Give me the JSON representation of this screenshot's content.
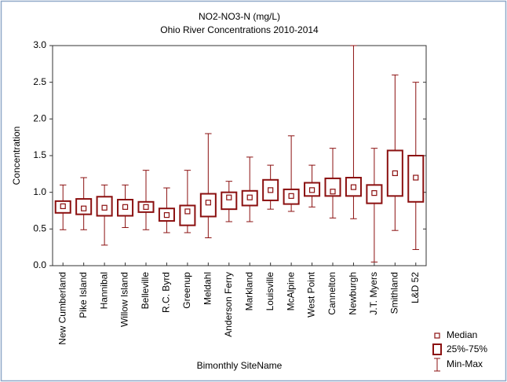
{
  "chart_data": {
    "type": "box",
    "title": "NO2-NO3-N (mg/L)",
    "subtitle": "Ohio River Concentrations 2010-2014",
    "x_label": "Bimonthly SiteName",
    "y_label": "Concentration",
    "color": "#8b1010",
    "legend": {
      "median": "Median",
      "box": "25%-75%",
      "whisker": "Min-Max"
    },
    "legend_position": "lower right",
    "categories": [
      "New Cumberland",
      "Pike Island",
      "Hannibal",
      "Willow Island",
      "Belleville",
      "R.C. Byrd",
      "Greenup",
      "Meldahl",
      "Anderson Ferry",
      "Markland",
      "Louisville",
      "McAlpine",
      "West Point",
      "Cannelton",
      "Newburgh",
      "J.T. Myers",
      "Smithland",
      "L&D 52"
    ],
    "min": [
      0.49,
      0.49,
      0.28,
      0.52,
      0.49,
      0.45,
      0.45,
      0.38,
      0.6,
      0.6,
      0.77,
      0.74,
      0.8,
      0.65,
      0.64,
      0.05,
      0.48,
      0.22
    ],
    "q1": [
      0.72,
      0.7,
      0.68,
      0.68,
      0.73,
      0.61,
      0.55,
      0.67,
      0.77,
      0.82,
      0.89,
      0.84,
      0.95,
      0.95,
      0.95,
      0.85,
      0.95,
      0.87
    ],
    "median": [
      0.81,
      0.78,
      0.79,
      0.8,
      0.8,
      0.69,
      0.74,
      0.86,
      0.93,
      0.93,
      1.03,
      0.95,
      1.03,
      1.01,
      1.07,
      0.99,
      1.26,
      1.2
    ],
    "q3": [
      0.88,
      0.91,
      0.94,
      0.9,
      0.87,
      0.78,
      0.82,
      0.98,
      1.0,
      1.02,
      1.17,
      1.04,
      1.13,
      1.19,
      1.2,
      1.1,
      1.57,
      1.5
    ],
    "max": [
      1.1,
      1.2,
      1.1,
      1.1,
      1.3,
      1.06,
      1.3,
      1.8,
      1.15,
      1.48,
      1.37,
      1.77,
      1.37,
      1.6,
      3.0,
      1.6,
      2.6,
      2.5
    ],
    "ylim": [
      0,
      3
    ],
    "yticks": [
      {
        "value": 0,
        "label": "0.0"
      },
      0.5,
      {
        "value": 1,
        "label": "1.0"
      },
      1.5,
      {
        "value": 2,
        "label": "2.0"
      },
      2.5,
      {
        "value": 3,
        "label": "3.0"
      }
    ]
  }
}
